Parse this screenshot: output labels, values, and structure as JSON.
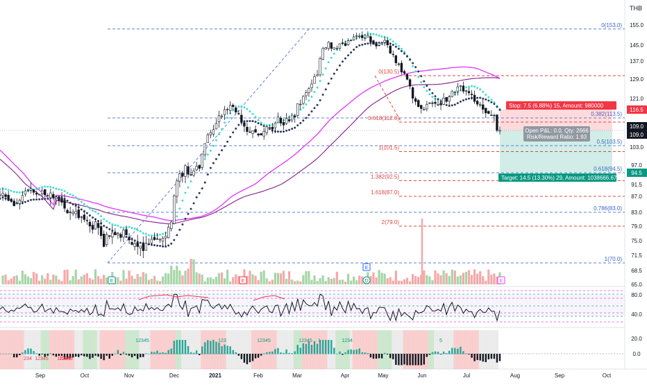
{
  "currency_label": "THB",
  "chart_data": {
    "type": "candlestick",
    "price_axis": {
      "ticks": [
        "155.0",
        "145.0",
        "137.0",
        "129.0",
        "121.0",
        "116.5",
        "109.0",
        "103.0",
        "97.0",
        "94.5",
        "91.5",
        "87.0",
        "83.0",
        "79.0",
        "75.0",
        "71.5",
        "68.5",
        "65.0"
      ],
      "current_price": "109.0",
      "current_price_2": "109.0",
      "stop_price": "116.5",
      "target_price": "94.5"
    },
    "time_axis": [
      "Sep",
      "Oct",
      "Nov",
      "Dec",
      "2021",
      "Feb",
      "Mar",
      "Apr",
      "May",
      "Jun",
      "Jul",
      "Aug",
      "Sep",
      "Oct"
    ],
    "fibonacci_right": [
      {
        "label": "0(153.0)",
        "value": 153.0
      },
      {
        "label": "0.382(113.5)",
        "value": 113.5
      },
      {
        "label": "0.5(103.5)",
        "value": 103.5
      },
      {
        "label": "0.618(94.5)",
        "value": 94.5
      },
      {
        "label": "0.786(83.0)",
        "value": 83.0
      },
      {
        "label": "1(70.0)",
        "value": 70.0
      }
    ],
    "fibonacci_extension": [
      {
        "label": "0(130.5)",
        "value": 130.5
      },
      {
        "label": "0.618(112.0)",
        "value": 112.0
      },
      {
        "label": "1(101.5)",
        "value": 101.5
      },
      {
        "label": "1.382(92.5)",
        "value": 92.5
      },
      {
        "label": "1.618(87.0)",
        "value": 87.0
      },
      {
        "label": "2(79.0)",
        "value": 79.0
      }
    ],
    "position": {
      "stop_label": "Stop: 7.5 (6.88%) 15, Amount: 980000",
      "target_label": "Target: 14.5 (13.30%) 29, Amount: 1038666.67",
      "pnl_label": "Open P&L: 0.0, Qty: 2666",
      "rr_label": "Risk/Reward Ratio: 1.93",
      "entry": 109.0,
      "stop": 116.5,
      "target": 94.5
    },
    "events": [
      "E",
      "E",
      "D",
      "E",
      "E"
    ],
    "rsi_axis": [
      "80.0",
      "40.0"
    ],
    "macd_axis": [
      "20.0",
      "0.0"
    ],
    "td_counts": [
      "12345",
      "12345",
      "123",
      "12345",
      "12345",
      "1",
      "1234",
      "5",
      "234",
      "12345",
      "12345"
    ],
    "series": [
      {
        "points": [
          [
            0,
            87.5
          ],
          [
            1,
            88.2
          ],
          [
            2,
            86.9
          ],
          [
            3,
            86.1
          ],
          [
            4,
            85.8
          ],
          [
            5,
            84.6
          ],
          [
            6,
            85.3
          ],
          [
            7,
            86
          ],
          [
            8,
            87.3
          ],
          [
            9,
            89.1
          ],
          [
            10,
            89.4
          ],
          [
            11,
            90
          ],
          [
            12,
            88.5
          ],
          [
            13,
            87.8
          ],
          [
            14,
            87.7
          ],
          [
            15,
            89.1
          ],
          [
            16,
            87.6
          ],
          [
            17,
            87.1
          ],
          [
            18,
            88.3
          ],
          [
            19,
            86.6
          ],
          [
            20,
            86.8
          ],
          [
            21,
            86
          ],
          [
            22,
            85.5
          ],
          [
            23,
            84
          ],
          [
            24,
            82.8
          ],
          [
            25,
            82.9
          ],
          [
            26,
            83
          ],
          [
            27,
            83.3
          ],
          [
            28,
            81.4
          ],
          [
            29,
            81.7
          ],
          [
            30,
            80.9
          ],
          [
            31,
            80.6
          ],
          [
            32,
            79
          ],
          [
            33,
            78.1
          ],
          [
            34,
            80.3
          ],
          [
            35,
            78.6
          ],
          [
            36,
            76.4
          ],
          [
            37,
            73.6
          ],
          [
            38,
            76.7
          ],
          [
            39,
            76.2
          ],
          [
            40,
            77.1
          ],
          [
            41,
            76.6
          ],
          [
            42,
            77
          ],
          [
            43,
            75.9
          ],
          [
            44,
            77.9
          ],
          [
            45,
            76.6
          ],
          [
            46,
            75.2
          ],
          [
            47,
            74.1
          ],
          [
            48,
            74.3
          ],
          [
            49,
            73.6
          ],
          [
            50,
            73.7
          ],
          [
            51,
            72.6
          ],
          [
            52,
            74.4
          ],
          [
            53,
            74.3
          ],
          [
            54,
            75.4
          ],
          [
            55,
            75.3
          ],
          [
            56,
            75.5
          ],
          [
            57,
            75.4
          ],
          [
            58,
            75.7
          ],
          [
            59,
            76.3
          ],
          [
            60,
            78.7
          ],
          [
            61,
            80.2
          ],
          [
            62,
            87.1
          ],
          [
            63,
            92.4
          ],
          [
            64,
            94.2
          ],
          [
            65,
            93.6
          ],
          [
            66,
            96.8
          ],
          [
            67,
            94.1
          ],
          [
            68,
            93.9
          ],
          [
            69,
            95.1
          ],
          [
            70,
            96.6
          ],
          [
            71,
            95.9
          ],
          [
            72,
            100.7
          ],
          [
            73,
            104.3
          ],
          [
            74,
            107.4
          ],
          [
            75,
            108.2
          ],
          [
            76,
            109.3
          ],
          [
            77,
            111.5
          ],
          [
            78,
            114.3
          ],
          [
            79,
            114.2
          ],
          [
            80,
            116.5
          ],
          [
            81,
            116.6
          ],
          [
            82,
            118.2
          ],
          [
            83,
            117.7
          ],
          [
            84,
            115.6
          ],
          [
            85,
            115.1
          ],
          [
            86,
            112.1
          ],
          [
            87,
            110.5
          ],
          [
            88,
            108.6
          ],
          [
            89,
            108.3
          ],
          [
            90,
            108.9
          ],
          [
            91,
            108.3
          ],
          [
            92,
            107.3
          ],
          [
            93,
            107.3
          ],
          [
            94,
            108.7
          ],
          [
            95,
            110.3
          ],
          [
            96,
            110.1
          ],
          [
            97,
            109.4
          ],
          [
            98,
            111.6
          ],
          [
            99,
            113.9
          ],
          [
            100,
            111.6
          ],
          [
            101,
            110.9
          ],
          [
            102,
            113.3
          ],
          [
            103,
            112.4
          ],
          [
            104,
            114.5
          ],
          [
            105,
            113.8
          ],
          [
            106,
            118.9
          ],
          [
            107,
            118.7
          ],
          [
            108,
            121.9
          ],
          [
            109,
            123.4
          ],
          [
            110,
            125.1
          ],
          [
            111,
            127
          ],
          [
            112,
            130.1
          ],
          [
            113,
            130.9
          ],
          [
            114,
            138.3
          ],
          [
            115,
            143.3
          ],
          [
            116,
            143.7
          ],
          [
            117,
            146.4
          ],
          [
            118,
            143.3
          ],
          [
            119,
            143.7
          ],
          [
            120,
            143.4
          ],
          [
            121,
            145.7
          ],
          [
            122,
            145.8
          ],
          [
            123,
            144.7
          ],
          [
            124,
            147.2
          ],
          [
            125,
            147.4
          ],
          [
            126,
            149.1
          ],
          [
            127,
            149.6
          ],
          [
            128,
            149.5
          ],
          [
            129,
            148.6
          ],
          [
            130,
            148.6
          ],
          [
            131,
            149.7
          ],
          [
            132,
            146.6
          ],
          [
            133,
            145.4
          ],
          [
            134,
            144.5
          ],
          [
            135,
            144.9
          ],
          [
            136,
            145.9
          ],
          [
            137,
            147.4
          ],
          [
            138,
            145.1
          ],
          [
            139,
            140.9
          ],
          [
            140,
            140.3
          ],
          [
            141,
            136.2
          ],
          [
            142,
            135.6
          ],
          [
            143,
            132.1
          ],
          [
            144,
            131.6
          ],
          [
            145,
            128.9
          ],
          [
            146,
            126.1
          ],
          [
            147,
            121.1
          ],
          [
            148,
            119.8
          ],
          [
            149,
            117.7
          ],
          [
            150,
            116.9
          ],
          [
            151,
            116.7
          ],
          [
            152,
            118.6
          ],
          [
            153,
            119.2
          ],
          [
            154,
            119.2
          ],
          [
            155,
            119
          ],
          [
            156,
            118.6
          ],
          [
            157,
            118.4
          ],
          [
            158,
            121.2
          ],
          [
            159,
            119.8
          ],
          [
            160,
            121.7
          ],
          [
            161,
            123.9
          ],
          [
            162,
            123.6
          ],
          [
            163,
            125.8
          ],
          [
            164,
            126.2
          ],
          [
            165,
            124
          ],
          [
            166,
            124.2
          ],
          [
            167,
            123.3
          ],
          [
            168,
            122.5
          ],
          [
            169,
            119.8
          ],
          [
            170,
            118.7
          ],
          [
            171,
            118.5
          ],
          [
            172,
            116.6
          ],
          [
            173,
            115.3
          ],
          [
            174,
            115.1
          ],
          [
            175,
            114.5
          ],
          [
            176,
            114.3
          ],
          [
            177,
            109
          ],
          [
            178,
            109
          ]
        ]
      }
    ]
  }
}
